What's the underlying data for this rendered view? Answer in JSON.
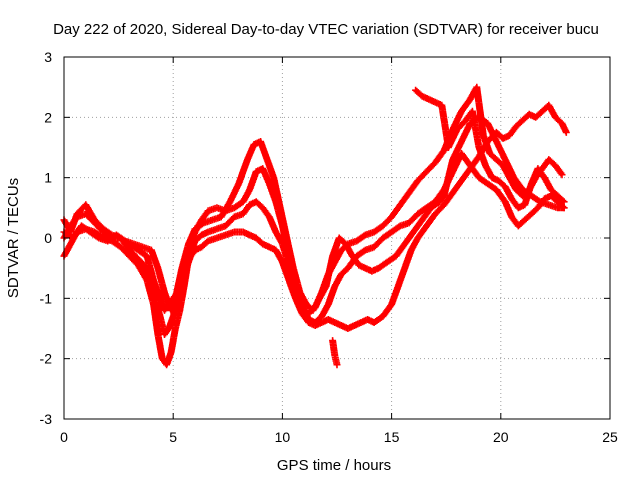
{
  "chart_data": {
    "type": "scatter",
    "title": "Day 222 of 2020, Sidereal Day-to-day VTEC variation (SDTVAR) for receiver bucu",
    "xlabel": "GPS time / hours",
    "ylabel": "SDTVAR / TECUs",
    "xlim": [
      0,
      25
    ],
    "ylim": [
      -3,
      3
    ],
    "xticks": [
      0,
      5,
      10,
      15,
      20,
      25
    ],
    "yticks": [
      -3,
      -2,
      -1,
      0,
      1,
      2,
      3
    ],
    "grid": true,
    "marker": "plus",
    "color": "#ff0000",
    "series": [
      {
        "points": [
          [
            0.0,
            0.3
          ],
          [
            0.3,
            0.1
          ],
          [
            0.6,
            0.4
          ],
          [
            1.0,
            0.55
          ],
          [
            1.4,
            0.3
          ],
          [
            1.8,
            0.15
          ],
          [
            2.2,
            0.05
          ],
          [
            2.6,
            0.0
          ],
          [
            3.0,
            -0.2
          ],
          [
            3.4,
            -0.35
          ],
          [
            3.8,
            -0.5
          ],
          [
            4.1,
            -0.9
          ],
          [
            4.4,
            -1.3
          ],
          [
            4.6,
            -1.6
          ],
          [
            4.8,
            -1.5
          ],
          [
            5.0,
            -1.3
          ],
          [
            5.2,
            -1.1
          ],
          [
            5.4,
            -0.8
          ],
          [
            5.6,
            -0.4
          ],
          [
            5.8,
            -0.1
          ],
          [
            6.0,
            0.1
          ],
          [
            6.3,
            0.3
          ],
          [
            6.6,
            0.45
          ],
          [
            7.0,
            0.5
          ],
          [
            7.4,
            0.45
          ],
          [
            7.8,
            0.5
          ],
          [
            8.2,
            0.6
          ],
          [
            8.5,
            0.8
          ],
          [
            8.8,
            1.1
          ],
          [
            9.1,
            1.15
          ],
          [
            9.4,
            0.9
          ],
          [
            9.7,
            0.6
          ],
          [
            10.0,
            0.2
          ],
          [
            10.3,
            -0.3
          ],
          [
            10.6,
            -0.75
          ],
          [
            10.9,
            -1.1
          ],
          [
            11.2,
            -1.35
          ],
          [
            11.5,
            -1.4
          ],
          [
            11.8,
            -1.3
          ],
          [
            12.1,
            -1.1
          ],
          [
            12.4,
            -0.8
          ],
          [
            12.7,
            -0.6
          ],
          [
            13.0,
            -0.5
          ],
          [
            13.4,
            -0.3
          ],
          [
            13.8,
            -0.2
          ],
          [
            14.2,
            -0.15
          ],
          [
            14.6,
            0.0
          ],
          [
            15.0,
            0.1
          ],
          [
            15.4,
            0.2
          ],
          [
            15.8,
            0.25
          ],
          [
            16.2,
            0.4
          ],
          [
            16.6,
            0.5
          ],
          [
            17.0,
            0.6
          ],
          [
            17.4,
            0.8
          ],
          [
            17.8,
            1.1
          ],
          [
            18.2,
            1.4
          ],
          [
            18.6,
            1.2
          ],
          [
            19.0,
            1.0
          ],
          [
            19.4,
            0.9
          ],
          [
            19.8,
            0.8
          ],
          [
            20.2,
            0.6
          ],
          [
            20.5,
            0.35
          ],
          [
            20.8,
            0.2
          ],
          [
            21.1,
            0.3
          ],
          [
            21.4,
            0.4
          ],
          [
            21.7,
            0.5
          ],
          [
            22.0,
            0.65
          ],
          [
            22.3,
            0.7
          ],
          [
            22.6,
            0.6
          ],
          [
            22.9,
            0.5
          ]
        ]
      },
      {
        "points": [
          [
            0.0,
            -0.3
          ],
          [
            0.3,
            -0.1
          ],
          [
            0.6,
            0.1
          ],
          [
            1.0,
            0.15
          ],
          [
            1.4,
            0.1
          ],
          [
            1.8,
            0.0
          ],
          [
            2.2,
            -0.05
          ],
          [
            2.6,
            -0.15
          ],
          [
            3.0,
            -0.3
          ],
          [
            3.4,
            -0.45
          ],
          [
            3.8,
            -0.7
          ],
          [
            4.1,
            -1.1
          ],
          [
            4.3,
            -1.6
          ],
          [
            4.5,
            -2.0
          ],
          [
            4.7,
            -2.1
          ],
          [
            4.9,
            -1.9
          ],
          [
            5.1,
            -1.5
          ],
          [
            5.3,
            -1.2
          ],
          [
            5.5,
            -0.8
          ],
          [
            5.7,
            -0.35
          ],
          [
            6.0,
            -0.05
          ],
          [
            6.3,
            0.05
          ],
          [
            6.6,
            0.1
          ],
          [
            7.0,
            0.15
          ],
          [
            7.4,
            0.2
          ],
          [
            7.8,
            0.35
          ],
          [
            8.2,
            0.4
          ],
          [
            8.5,
            0.55
          ],
          [
            8.8,
            0.6
          ],
          [
            9.1,
            0.5
          ],
          [
            9.4,
            0.35
          ],
          [
            9.7,
            0.1
          ],
          [
            10.0,
            -0.1
          ],
          [
            10.3,
            -0.45
          ],
          [
            10.6,
            -0.9
          ],
          [
            10.9,
            -1.2
          ],
          [
            11.2,
            -1.25
          ],
          [
            11.5,
            -1.15
          ],
          [
            11.8,
            -0.9
          ],
          [
            12.1,
            -0.6
          ],
          [
            12.4,
            -0.4
          ],
          [
            12.7,
            -0.2
          ],
          [
            13.0,
            -0.1
          ],
          [
            13.4,
            -0.05
          ],
          [
            13.8,
            0.05
          ],
          [
            14.2,
            0.1
          ],
          [
            14.6,
            0.2
          ],
          [
            15.0,
            0.35
          ],
          [
            15.4,
            0.55
          ],
          [
            15.8,
            0.75
          ],
          [
            16.2,
            0.95
          ],
          [
            16.6,
            1.1
          ],
          [
            17.0,
            1.25
          ],
          [
            17.4,
            1.45
          ],
          [
            17.8,
            1.8
          ],
          [
            18.2,
            2.1
          ],
          [
            18.6,
            2.3
          ],
          [
            18.9,
            2.5
          ],
          [
            19.2,
            1.7
          ],
          [
            19.5,
            1.4
          ],
          [
            19.8,
            1.3
          ],
          [
            20.1,
            1.2
          ],
          [
            20.4,
            1.0
          ],
          [
            20.7,
            0.8
          ],
          [
            21.0,
            0.7
          ],
          [
            21.3,
            0.8
          ],
          [
            21.6,
            1.0
          ],
          [
            21.9,
            1.15
          ],
          [
            22.2,
            1.3
          ],
          [
            22.5,
            1.2
          ],
          [
            22.8,
            1.05
          ]
        ]
      },
      {
        "points": [
          [
            0.0,
            0.0
          ],
          [
            0.3,
            0.2
          ],
          [
            0.6,
            0.35
          ],
          [
            1.0,
            0.4
          ],
          [
            1.4,
            0.25
          ],
          [
            1.8,
            0.1
          ],
          [
            2.2,
            0.0
          ],
          [
            2.6,
            0.0
          ],
          [
            3.0,
            -0.1
          ],
          [
            3.4,
            -0.2
          ],
          [
            3.8,
            -0.3
          ],
          [
            4.1,
            -0.7
          ],
          [
            4.4,
            -1.0
          ],
          [
            4.6,
            -1.2
          ],
          [
            4.8,
            -1.1
          ],
          [
            5.0,
            -1.0
          ],
          [
            5.2,
            -0.9
          ],
          [
            5.5,
            -0.6
          ],
          [
            5.8,
            -0.3
          ],
          [
            6.0,
            -0.2
          ],
          [
            6.3,
            -0.15
          ],
          [
            6.6,
            -0.05
          ],
          [
            7.0,
            0.0
          ],
          [
            7.4,
            0.05
          ],
          [
            7.8,
            0.1
          ],
          [
            8.2,
            0.1
          ],
          [
            8.5,
            0.05
          ],
          [
            8.8,
            0.0
          ],
          [
            9.1,
            -0.1
          ],
          [
            9.4,
            -0.15
          ],
          [
            9.7,
            -0.2
          ],
          [
            10.0,
            -0.4
          ],
          [
            10.3,
            -0.7
          ],
          [
            10.6,
            -1.0
          ],
          [
            10.9,
            -1.25
          ],
          [
            11.2,
            -1.4
          ],
          [
            11.5,
            -1.45
          ],
          [
            11.8,
            -1.4
          ],
          [
            12.1,
            -1.35
          ],
          [
            12.4,
            -1.4
          ],
          [
            12.7,
            -1.45
          ],
          [
            13.0,
            -1.5
          ],
          [
            13.3,
            -1.45
          ],
          [
            13.6,
            -1.4
          ],
          [
            13.9,
            -1.35
          ],
          [
            14.2,
            -1.4
          ],
          [
            14.6,
            -1.3
          ],
          [
            15.0,
            -1.1
          ],
          [
            15.3,
            -0.8
          ],
          [
            15.6,
            -0.5
          ],
          [
            15.9,
            -0.2
          ],
          [
            16.2,
            0.0
          ],
          [
            16.6,
            0.2
          ],
          [
            17.0,
            0.4
          ],
          [
            17.4,
            0.55
          ],
          [
            17.8,
            0.75
          ],
          [
            18.2,
            0.95
          ],
          [
            18.6,
            1.15
          ],
          [
            19.0,
            1.35
          ],
          [
            19.4,
            1.6
          ],
          [
            19.8,
            1.75
          ],
          [
            20.1,
            1.65
          ],
          [
            20.4,
            1.7
          ],
          [
            20.7,
            1.85
          ],
          [
            21.0,
            1.95
          ],
          [
            21.3,
            2.05
          ],
          [
            21.6,
            2.0
          ],
          [
            21.9,
            2.1
          ],
          [
            22.2,
            2.2
          ],
          [
            22.5,
            2.0
          ],
          [
            22.8,
            1.9
          ],
          [
            23.0,
            1.75
          ]
        ]
      },
      {
        "points": [
          [
            0.0,
            0.1
          ],
          [
            0.4,
            0.0
          ],
          [
            0.8,
            0.2
          ],
          [
            1.2,
            0.1
          ],
          [
            1.6,
            0.0
          ],
          [
            2.0,
            -0.05
          ],
          [
            2.4,
            0.05
          ],
          [
            2.8,
            -0.05
          ],
          [
            3.2,
            -0.1
          ],
          [
            3.6,
            -0.15
          ],
          [
            4.0,
            -0.2
          ],
          [
            4.3,
            -0.5
          ],
          [
            4.6,
            -0.9
          ],
          [
            4.9,
            -1.2
          ],
          [
            5.1,
            -1.0
          ],
          [
            5.4,
            -0.5
          ],
          [
            5.7,
            -0.1
          ],
          [
            6.0,
            0.15
          ],
          [
            6.4,
            0.25
          ],
          [
            6.8,
            0.3
          ],
          [
            7.2,
            0.35
          ],
          [
            7.6,
            0.6
          ],
          [
            8.0,
            0.9
          ],
          [
            8.4,
            1.3
          ],
          [
            8.7,
            1.55
          ],
          [
            9.0,
            1.6
          ],
          [
            9.3,
            1.3
          ],
          [
            9.6,
            1.0
          ],
          [
            9.9,
            0.5
          ],
          [
            10.2,
            0.0
          ],
          [
            10.5,
            -0.5
          ],
          [
            10.8,
            -0.9
          ],
          [
            11.1,
            -1.1
          ],
          [
            11.4,
            -1.2
          ],
          [
            11.7,
            -1.0
          ],
          [
            12.0,
            -0.8
          ],
          [
            12.3,
            -0.3
          ],
          [
            12.6,
            0.0
          ],
          [
            12.9,
            -0.1
          ],
          [
            13.2,
            -0.3
          ],
          [
            13.5,
            -0.45
          ],
          [
            13.8,
            -0.5
          ],
          [
            14.1,
            -0.55
          ],
          [
            14.4,
            -0.5
          ],
          [
            14.8,
            -0.4
          ],
          [
            15.2,
            -0.3
          ],
          [
            15.6,
            -0.1
          ],
          [
            16.0,
            0.1
          ],
          [
            16.4,
            0.3
          ],
          [
            16.8,
            0.5
          ],
          [
            17.2,
            0.6
          ],
          [
            17.4,
            0.7
          ],
          [
            17.8,
            1.3
          ],
          [
            18.2,
            1.6
          ],
          [
            18.6,
            1.9
          ],
          [
            19.0,
            2.0
          ],
          [
            19.4,
            1.9
          ],
          [
            19.8,
            1.6
          ],
          [
            20.2,
            1.3
          ],
          [
            20.6,
            1.0
          ],
          [
            21.0,
            0.8
          ],
          [
            21.4,
            0.7
          ],
          [
            21.8,
            0.6
          ],
          [
            22.2,
            0.55
          ],
          [
            22.6,
            0.5
          ],
          [
            22.9,
            0.5
          ]
        ]
      },
      {
        "points": [
          [
            16.1,
            2.45
          ],
          [
            16.4,
            2.35
          ],
          [
            16.7,
            2.3
          ],
          [
            17.0,
            2.25
          ],
          [
            17.3,
            2.2
          ],
          [
            17.6,
            1.5
          ],
          [
            18.0,
            1.8
          ],
          [
            18.4,
            1.95
          ],
          [
            18.7,
            2.1
          ],
          [
            19.0,
            1.5
          ],
          [
            19.3,
            1.2
          ],
          [
            19.6,
            1.0
          ],
          [
            19.9,
            0.95
          ],
          [
            20.2,
            0.85
          ],
          [
            20.5,
            0.65
          ],
          [
            20.8,
            0.5
          ],
          [
            21.1,
            0.55
          ],
          [
            21.4,
            0.9
          ],
          [
            21.7,
            1.15
          ],
          [
            22.0,
            1.0
          ],
          [
            22.3,
            0.8
          ],
          [
            22.6,
            0.7
          ],
          [
            22.9,
            0.6
          ]
        ]
      },
      {
        "points": [
          [
            12.3,
            -1.7
          ],
          [
            12.4,
            -1.95
          ],
          [
            12.5,
            -2.1
          ]
        ]
      }
    ]
  }
}
